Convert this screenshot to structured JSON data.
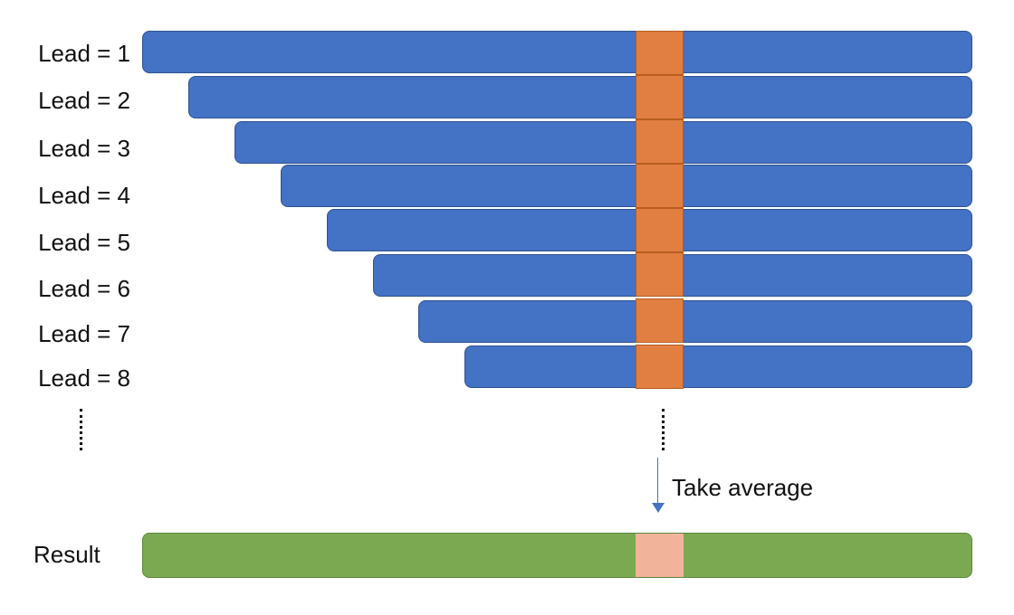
{
  "leads": [
    {
      "label": "Lead = 1"
    },
    {
      "label": "Lead = 2"
    },
    {
      "label": "Lead = 3"
    },
    {
      "label": "Lead = 4"
    },
    {
      "label": "Lead = 5"
    },
    {
      "label": "Lead = 6"
    },
    {
      "label": "Lead = 7"
    },
    {
      "label": "Lead = 8"
    }
  ],
  "step_label": "Take average",
  "result_label": "Result",
  "colors": {
    "lead_bar": "#4472c4",
    "highlight": "#e07f41",
    "result_bar": "#7aa952",
    "result_highlight": "#f2b39b",
    "arrow": "#4472c4"
  }
}
